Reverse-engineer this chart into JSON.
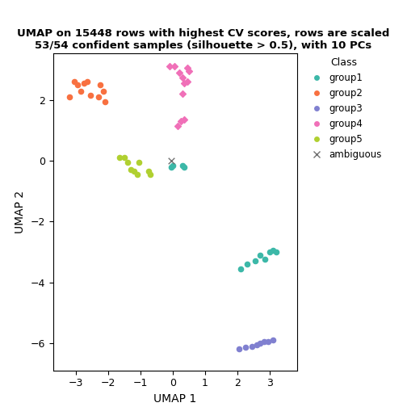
{
  "title": "UMAP on 15448 rows with highest CV scores, rows are scaled\n53/54 confident samples (silhouette > 0.5), with 10 PCs",
  "xlabel": "UMAP 1",
  "ylabel": "UMAP 2",
  "xlim": [
    -3.7,
    3.85
  ],
  "ylim": [
    -6.9,
    3.55
  ],
  "groups": {
    "group1": {
      "color": "#3cb8a8",
      "marker": "o",
      "x": [
        0.0,
        -0.05,
        0.3,
        0.35,
        2.1,
        2.3,
        2.55,
        2.7,
        2.85,
        3.0,
        3.1,
        3.2
      ],
      "y": [
        -0.15,
        -0.2,
        -0.15,
        -0.2,
        -3.55,
        -3.4,
        -3.3,
        -3.1,
        -3.25,
        -3.0,
        -2.95,
        -3.0
      ]
    },
    "group2": {
      "color": "#f87040",
      "marker": "o",
      "x": [
        -3.2,
        -3.05,
        -2.95,
        -2.85,
        -2.75,
        -2.65,
        -2.55,
        -2.3,
        -2.25,
        -2.15,
        -2.1
      ],
      "y": [
        2.1,
        2.6,
        2.5,
        2.3,
        2.55,
        2.6,
        2.15,
        2.1,
        2.5,
        2.3,
        1.95
      ]
    },
    "group3": {
      "color": "#8080d0",
      "marker": "o",
      "x": [
        2.05,
        2.25,
        2.45,
        2.6,
        2.7,
        2.82,
        2.95,
        3.1
      ],
      "y": [
        -6.2,
        -6.15,
        -6.1,
        -6.05,
        -6.0,
        -5.95,
        -5.95,
        -5.9
      ]
    },
    "group4": {
      "color": "#f070b8",
      "marker": "D",
      "x": [
        -0.1,
        0.05,
        0.2,
        0.3,
        0.35,
        0.45,
        0.5,
        0.45,
        0.3,
        0.35,
        0.25,
        0.15
      ],
      "y": [
        3.1,
        3.1,
        2.9,
        2.75,
        2.55,
        2.6,
        2.95,
        3.05,
        2.2,
        1.35,
        1.3,
        1.15
      ]
    },
    "group5": {
      "color": "#b0d030",
      "marker": "o",
      "x": [
        -1.65,
        -1.5,
        -1.4,
        -1.3,
        -1.2,
        -1.1,
        -1.05,
        -0.75,
        -0.7
      ],
      "y": [
        0.1,
        0.1,
        -0.05,
        -0.3,
        -0.35,
        -0.45,
        -0.05,
        -0.35,
        -0.45
      ]
    },
    "ambiguous": {
      "color": "#707070",
      "marker": "x",
      "x": [
        -0.05
      ],
      "y": [
        0.0
      ]
    }
  },
  "legend_title": "Class",
  "legend_groups": [
    "group1",
    "group2",
    "group3",
    "group4",
    "group5",
    "ambiguous"
  ],
  "background_color": "#ffffff",
  "xticks": [
    -3,
    -2,
    -1,
    0,
    1,
    2,
    3
  ],
  "yticks": [
    -6,
    -4,
    -2,
    0,
    2
  ],
  "marker_size": 20,
  "figure_width": 5.04,
  "figure_height": 5.04
}
